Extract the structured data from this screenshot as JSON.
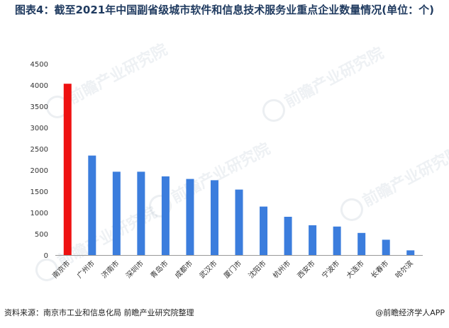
{
  "title": "图表4：截至2021年中国副省级城市软件和信息技术服务业重点企业数量情况(单位：个)",
  "footer": {
    "source": "资料来源：南京市工业和信息化局 前瞻产业研究院整理",
    "brand": "@前瞻经济学人APP"
  },
  "watermark": {
    "text": "前瞻产业研究院"
  },
  "colors": {
    "highlight": "#ee1111",
    "bar": "#3b7ddd",
    "axis": "#999999",
    "tick_text": "#333333"
  },
  "chart_data": {
    "type": "bar",
    "categories": [
      "南京市",
      "广州市",
      "济南市",
      "深圳市",
      "青岛市",
      "成都市",
      "武汉市",
      "厦门市",
      "沈阳市",
      "杭州市",
      "西安市",
      "宁波市",
      "大连市",
      "长春市",
      "哈尔滨"
    ],
    "values": [
      4030,
      2340,
      1960,
      1960,
      1850,
      1790,
      1760,
      1540,
      1140,
      900,
      700,
      670,
      520,
      360,
      110
    ],
    "highlight_index": 0,
    "ylim": [
      0,
      4500
    ],
    "yticks": [
      0,
      500,
      1000,
      1500,
      2000,
      2500,
      3000,
      3500,
      4000,
      4500
    ],
    "grid": false,
    "xlabel": "",
    "ylabel": ""
  }
}
